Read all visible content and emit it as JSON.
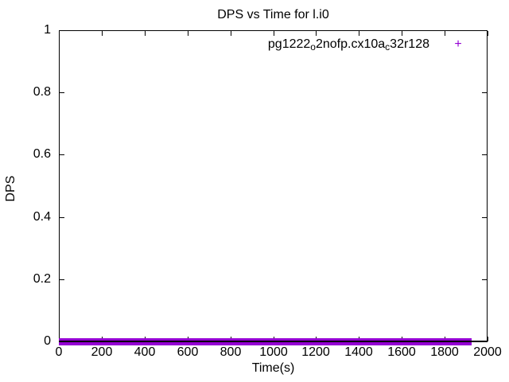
{
  "chart_data": {
    "type": "scatter",
    "title": "DPS vs Time for l.i0",
    "xlabel": "Time(s)",
    "ylabel": "DPS",
    "xlim": [
      0,
      2000
    ],
    "ylim": [
      0,
      1
    ],
    "x_ticks": [
      0,
      200,
      400,
      600,
      800,
      1000,
      1200,
      1400,
      1600,
      1800,
      2000
    ],
    "x_tick_labels": [
      "0",
      "200",
      "400",
      "600",
      "800",
      "1000",
      "1200",
      "1400",
      "1600",
      "1800",
      "2000"
    ],
    "y_ticks": [
      0,
      0.2,
      0.4,
      0.6,
      0.8,
      1
    ],
    "y_tick_labels": [
      "0",
      "0.2",
      "0.4",
      "0.6",
      "0.8",
      "1"
    ],
    "grid": false,
    "legend_position": "top-right-inside",
    "border_color": "#000000",
    "background_color": "#ffffff",
    "series": [
      {
        "name": "pg1222_o2nofp.cx10a_c32r128",
        "name_segments": [
          {
            "text": "pg1222"
          },
          {
            "text": "o",
            "sub": true
          },
          {
            "text": "2nofp.cx10a"
          },
          {
            "text": "c",
            "sub": true
          },
          {
            "text": "32r128"
          }
        ],
        "marker": "+",
        "color": "#9400D3",
        "x_start": 0,
        "x_end": 1925,
        "y_constant": 0,
        "note": "dense samples across the whole run; every DPS value is ~0, forming a solid band on the x-axis"
      }
    ]
  }
}
